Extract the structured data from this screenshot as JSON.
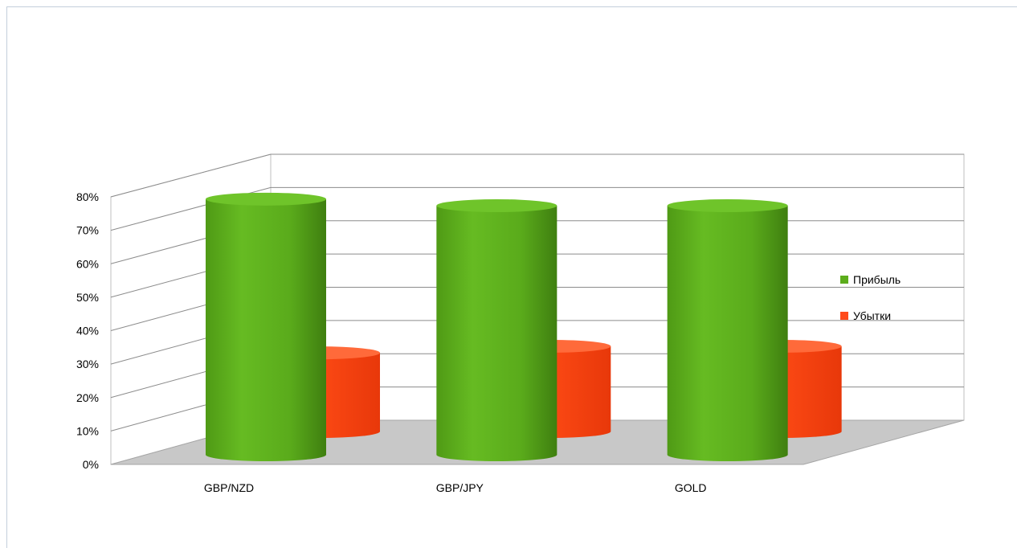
{
  "chart_data": {
    "type": "bar",
    "style": "3d-cylinder",
    "categories": [
      "GBP/NZD",
      "GBP/JPY",
      "GOLD"
    ],
    "series": [
      {
        "name": "Прибыль",
        "values": [
          78,
          76,
          76
        ],
        "color": "#5cad1c"
      },
      {
        "name": "Убытки",
        "values": [
          24,
          26,
          26
        ],
        "color": "#ff4a1a"
      }
    ],
    "ylim": [
      0,
      80
    ],
    "y_ticks": [
      "0%",
      "10%",
      "20%",
      "30%",
      "40%",
      "50%",
      "60%",
      "70%",
      "80%"
    ],
    "grid": true,
    "legend_position": "right",
    "floor_color": "#c8c8c8"
  }
}
